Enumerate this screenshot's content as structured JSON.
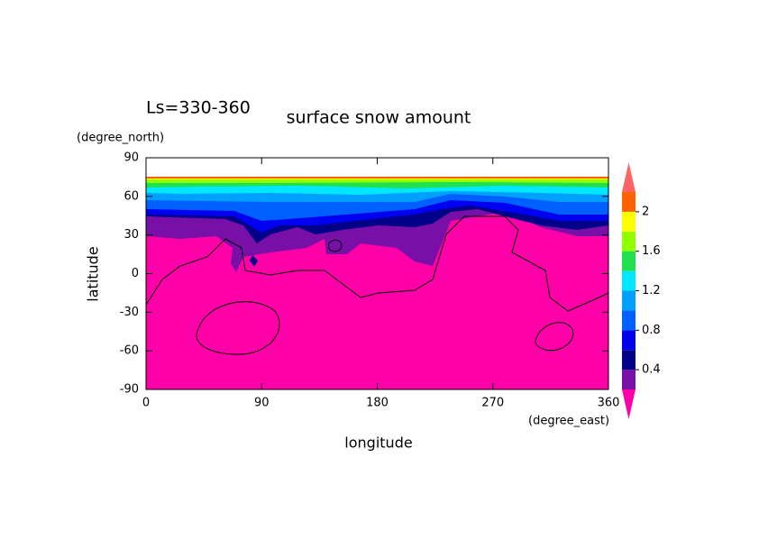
{
  "chart_data": {
    "type": "contour",
    "title": "surface snow amount",
    "annotation": "Ls=330-360",
    "x_label": "longitude",
    "y_label": "latitude",
    "x_unit": "(degree_east)",
    "y_unit": "(degree_north)",
    "xlim": [
      0,
      360
    ],
    "xticks": [
      0,
      90,
      180,
      270,
      360
    ],
    "ylim": [
      -90,
      90
    ],
    "yticks": [
      -90,
      -60,
      -30,
      0,
      30,
      60,
      90
    ],
    "levels": [
      0.2,
      0.4,
      0.6,
      0.8,
      1.0,
      1.2,
      1.4,
      1.6,
      1.8,
      2.0,
      2.2
    ],
    "colors": [
      "#ff00a8",
      "#7810a8",
      "#000088",
      "#0000f0",
      "#0060ff",
      "#00a0ff",
      "#00e8ff",
      "#20e050",
      "#90ff00",
      "#ffff00",
      "#ff6000",
      "#ff6464"
    ],
    "colorbar_ticks": [
      0.4,
      0.8,
      1.2,
      1.6,
      2
    ]
  }
}
